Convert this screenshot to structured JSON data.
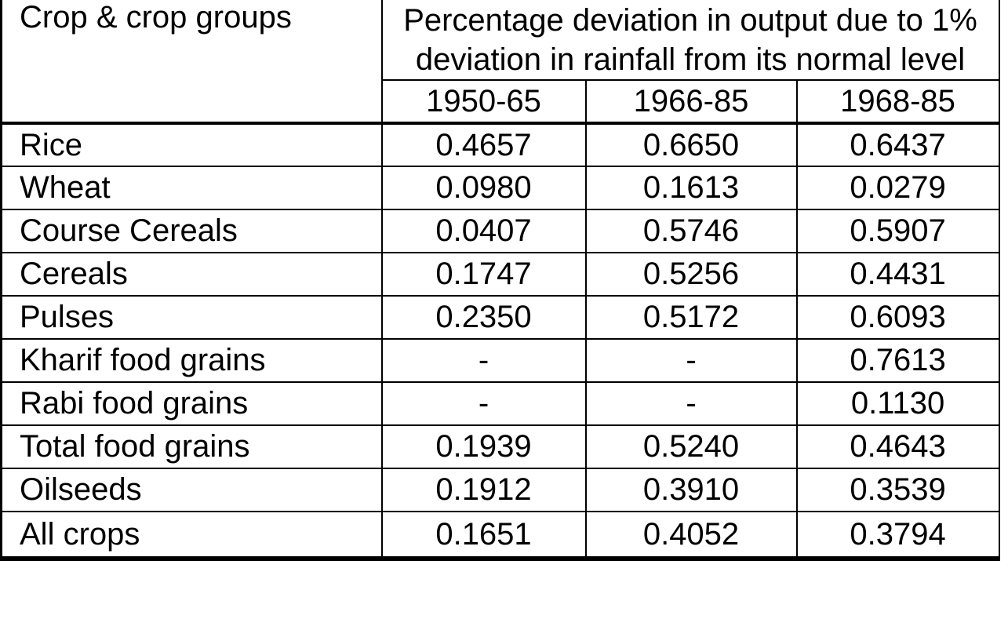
{
  "table": {
    "corner_header": "Crop & crop groups",
    "main_header": "Percentage deviation in output due to 1% deviation in rainfall from its normal level",
    "period_columns": [
      "1950-65",
      "1966-85",
      "1968-85"
    ],
    "rows": [
      {
        "label": "Rice",
        "values": [
          "0.4657",
          "0.6650",
          "0.6437"
        ]
      },
      {
        "label": "Wheat",
        "values": [
          "0.0980",
          "0.1613",
          "0.0279"
        ]
      },
      {
        "label": "Course Cereals",
        "values": [
          "0.0407",
          "0.5746",
          "0.5907"
        ]
      },
      {
        "label": "Cereals",
        "values": [
          "0.1747",
          "0.5256",
          "0.4431"
        ]
      },
      {
        "label": "Pulses",
        "values": [
          "0.2350",
          "0.5172",
          "0.6093"
        ]
      },
      {
        "label": "Kharif food grains",
        "values": [
          "-",
          "-",
          "0.7613"
        ]
      },
      {
        "label": "Rabi food grains",
        "values": [
          "-",
          "-",
          "0.1130"
        ]
      },
      {
        "label": "Total food grains",
        "values": [
          "0.1939",
          "0.5240",
          "0.4643"
        ]
      },
      {
        "label": "Oilseeds",
        "values": [
          "0.1912",
          "0.3910",
          "0.3539"
        ]
      },
      {
        "label": "All crops",
        "values": [
          "0.1651",
          "0.4052",
          "0.3794"
        ]
      }
    ]
  },
  "colors": {
    "border": "#000000",
    "background": "#ffffff",
    "text": "#000000"
  },
  "chart_data": {
    "type": "table",
    "title": "Percentage deviation in output due to 1% deviation in rainfall from its normal level",
    "categories": [
      "Rice",
      "Wheat",
      "Course Cereals",
      "Cereals",
      "Pulses",
      "Kharif food grains",
      "Rabi food grains",
      "Total food grains",
      "Oilseeds",
      "All crops"
    ],
    "series": [
      {
        "name": "1950-65",
        "values": [
          0.4657,
          0.098,
          0.0407,
          0.1747,
          0.235,
          null,
          null,
          0.1939,
          0.1912,
          0.1651
        ]
      },
      {
        "name": "1966-85",
        "values": [
          0.665,
          0.1613,
          0.5746,
          0.5256,
          0.5172,
          null,
          null,
          0.524,
          0.391,
          0.4052
        ]
      },
      {
        "name": "1968-85",
        "values": [
          0.6437,
          0.0279,
          0.5907,
          0.4431,
          0.6093,
          0.7613,
          0.113,
          0.4643,
          0.3539,
          0.3794
        ]
      }
    ]
  }
}
